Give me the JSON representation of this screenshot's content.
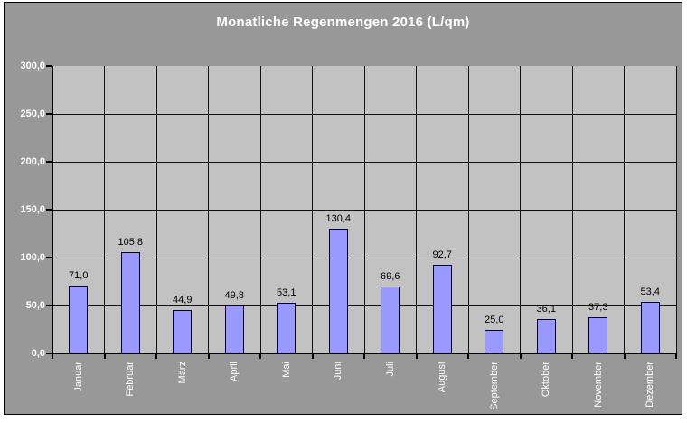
{
  "chart_data": {
    "type": "bar",
    "title": "Monatliche Regenmengen 2016 (L/qm)",
    "xlabel": "",
    "ylabel": "",
    "categories": [
      "Januar",
      "Februar",
      "März",
      "April",
      "Mai",
      "Juni",
      "Juli",
      "August",
      "September",
      "Oktober",
      "November",
      "Dezember"
    ],
    "values": [
      71.0,
      105.8,
      44.9,
      49.8,
      53.1,
      130.4,
      69.6,
      92.7,
      25.0,
      36.1,
      37.3,
      53.4
    ],
    "value_labels": [
      "71,0",
      "105,8",
      "44,9",
      "49,8",
      "53,1",
      "130,4",
      "69,6",
      "92,7",
      "25,0",
      "36,1",
      "37,3",
      "53,4"
    ],
    "ylim": [
      0,
      300
    ],
    "ytick_step": 50,
    "ytick_labels": [
      "0,0",
      "50,0",
      "100,0",
      "150,0",
      "200,0",
      "250,0",
      "300,0"
    ],
    "grid": "horizontal major lines and vertical category separators, black on gray",
    "legend": "none",
    "colors": {
      "page_bg": "#ffffff",
      "chart_bg": "#989898",
      "plot_bg": "#c2c2c2",
      "bar_fill": "#9999ff",
      "bar_border": "#000033",
      "grid_line": "#111111",
      "axis_line": "#000000",
      "title_color": "#ffffff",
      "tick_label_color": "#ffffff",
      "data_label_color": "#000000",
      "box_border": "#000000"
    }
  }
}
